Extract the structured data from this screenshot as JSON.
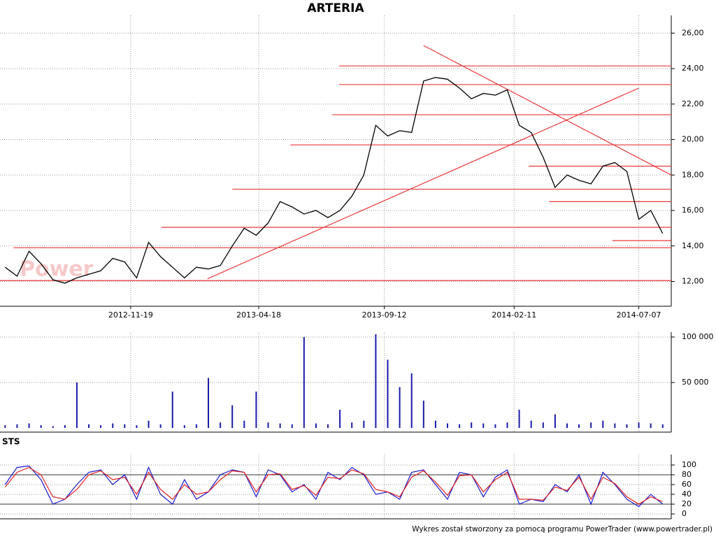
{
  "chart_data": [
    {
      "type": "line",
      "title": "ARTERIA",
      "watermark": "Power",
      "color": "#000000",
      "line_color": "#e8393a",
      "grid": true,
      "x": [
        "2012-06-25",
        "2012-07-09",
        "2012-07-23",
        "2012-08-06",
        "2012-08-20",
        "2012-09-03",
        "2012-09-17",
        "2012-10-01",
        "2012-10-15",
        "2012-10-29",
        "2012-11-12",
        "2012-11-26",
        "2012-12-10",
        "2012-12-24",
        "2013-01-07",
        "2013-01-21",
        "2013-02-04",
        "2013-02-18",
        "2013-03-04",
        "2013-03-18",
        "2013-04-01",
        "2013-04-15",
        "2013-04-29",
        "2013-05-13",
        "2013-05-27",
        "2013-06-10",
        "2013-06-24",
        "2013-07-08",
        "2013-07-22",
        "2013-08-05",
        "2013-08-19",
        "2013-09-02",
        "2013-09-16",
        "2013-09-30",
        "2013-10-14",
        "2013-10-28",
        "2013-11-11",
        "2013-11-25",
        "2013-12-09",
        "2013-12-23",
        "2014-01-06",
        "2014-01-20",
        "2014-02-03",
        "2014-02-17",
        "2014-03-03",
        "2014-03-17",
        "2014-03-31",
        "2014-04-14",
        "2014-04-28",
        "2014-05-12",
        "2014-05-26",
        "2014-06-09",
        "2014-06-23",
        "2014-07-07",
        "2014-07-21",
        "2014-08-04"
      ],
      "values": [
        12.8,
        12.3,
        13.7,
        13.0,
        12.1,
        11.9,
        12.2,
        12.4,
        12.6,
        13.3,
        13.1,
        12.2,
        14.2,
        13.4,
        12.8,
        12.2,
        12.8,
        12.7,
        12.9,
        14.0,
        15.0,
        14.6,
        15.3,
        16.5,
        16.2,
        15.8,
        16.0,
        15.6,
        16.0,
        16.8,
        18.0,
        20.8,
        20.2,
        20.5,
        20.4,
        23.3,
        23.5,
        23.4,
        22.9,
        22.3,
        22.6,
        22.5,
        22.8,
        20.8,
        20.4,
        19.0,
        17.3,
        18.0,
        17.7,
        17.5,
        18.5,
        18.7,
        18.2,
        15.5,
        16.0,
        14.7
      ],
      "xlim": [
        "2012-06-19",
        "2014-08-14"
      ],
      "xticks": [
        "2012-11-19",
        "2013-04-18",
        "2013-09-12",
        "2014-02-11",
        "2014-07-07"
      ],
      "ylim": [
        10.6,
        27.0
      ],
      "yticks": [
        {
          "value": 12,
          "label": "12,00"
        },
        {
          "value": 14,
          "label": "14,00"
        },
        {
          "value": 16,
          "label": "16,00"
        },
        {
          "value": 18,
          "label": "18,00"
        },
        {
          "value": 20,
          "label": "20,00"
        },
        {
          "value": 22,
          "label": "22,00"
        },
        {
          "value": 24,
          "label": "24,00"
        },
        {
          "value": 26,
          "label": "26,00"
        }
      ],
      "lines": [
        {
          "x": [
            "2013-07-21",
            "2014-08-14"
          ],
          "y": [
            24.15,
            24.15
          ]
        },
        {
          "x": [
            "2013-07-21",
            "2014-08-14"
          ],
          "y": [
            23.1,
            23.1
          ]
        },
        {
          "x": [
            "2013-07-13",
            "2014-08-14"
          ],
          "y": [
            21.4,
            21.4
          ]
        },
        {
          "x": [
            "2013-05-25",
            "2014-08-14"
          ],
          "y": [
            19.7,
            19.7
          ]
        },
        {
          "x": [
            "2014-02-28",
            "2014-08-14"
          ],
          "y": [
            18.5,
            18.5
          ]
        },
        {
          "x": [
            "2013-03-18",
            "2014-08-14"
          ],
          "y": [
            17.2,
            17.2
          ]
        },
        {
          "x": [
            "2014-03-24",
            "2014-08-14"
          ],
          "y": [
            16.5,
            16.5
          ]
        },
        {
          "x": [
            "2012-12-25",
            "2014-08-14"
          ],
          "y": [
            15.05,
            15.05
          ]
        },
        {
          "x": [
            "2014-06-06",
            "2014-08-14"
          ],
          "y": [
            14.3,
            14.3
          ]
        },
        {
          "x": [
            "2012-07-05",
            "2014-08-14"
          ],
          "y": [
            13.9,
            13.9
          ]
        },
        {
          "x": [
            "2012-06-19",
            "2014-08-14"
          ],
          "y": [
            12.05,
            12.05
          ]
        },
        {
          "x": [
            "2013-02-17",
            "2014-07-07"
          ],
          "y": [
            12.15,
            22.9
          ]
        },
        {
          "x": [
            "2013-10-28",
            "2014-08-14"
          ],
          "y": [
            25.3,
            18.0
          ]
        }
      ]
    },
    {
      "type": "bar",
      "color": "#1a1aa8",
      "x": [
        "2012-06-25",
        "2012-07-09",
        "2012-07-23",
        "2012-08-06",
        "2012-08-20",
        "2012-09-03",
        "2012-09-17",
        "2012-10-01",
        "2012-10-15",
        "2012-10-29",
        "2012-11-12",
        "2012-11-26",
        "2012-12-10",
        "2012-12-24",
        "2013-01-07",
        "2013-01-21",
        "2013-02-04",
        "2013-02-18",
        "2013-03-04",
        "2013-03-18",
        "2013-04-01",
        "2013-04-15",
        "2013-04-29",
        "2013-05-13",
        "2013-05-27",
        "2013-06-10",
        "2013-06-24",
        "2013-07-08",
        "2013-07-22",
        "2013-08-05",
        "2013-08-19",
        "2013-09-02",
        "2013-09-16",
        "2013-09-30",
        "2013-10-14",
        "2013-10-28",
        "2013-11-11",
        "2013-11-25",
        "2013-12-09",
        "2013-12-23",
        "2014-01-06",
        "2014-01-20",
        "2014-02-03",
        "2014-02-17",
        "2014-03-03",
        "2014-03-17",
        "2014-03-31",
        "2014-04-14",
        "2014-04-28",
        "2014-05-12",
        "2014-05-26",
        "2014-06-09",
        "2014-06-23",
        "2014-07-07",
        "2014-07-21",
        "2014-08-04"
      ],
      "values": [
        3000,
        4000,
        5000,
        3000,
        2000,
        3000,
        50000,
        4000,
        3000,
        5000,
        4000,
        3000,
        8000,
        4000,
        40000,
        3000,
        4000,
        55000,
        6000,
        25000,
        8000,
        40000,
        6000,
        5000,
        4000,
        100000,
        5000,
        4000,
        20000,
        6000,
        8000,
        103000,
        75000,
        45000,
        60000,
        30000,
        8000,
        5000,
        4000,
        6000,
        5000,
        4000,
        6000,
        20000,
        8000,
        6000,
        15000,
        5000,
        4000,
        6000,
        8000,
        5000,
        4000,
        6000,
        5000,
        4000
      ],
      "ylim": [
        -4600,
        105400
      ],
      "yticks": [
        {
          "value": 50000,
          "label": "50 000"
        },
        {
          "value": 100000,
          "label": "100 000"
        }
      ]
    },
    {
      "type": "line",
      "title": "STS",
      "x": [
        "2012-06-25",
        "2012-07-09",
        "2012-07-23",
        "2012-08-06",
        "2012-08-20",
        "2012-09-03",
        "2012-09-17",
        "2012-10-01",
        "2012-10-15",
        "2012-10-29",
        "2012-11-12",
        "2012-11-26",
        "2012-12-10",
        "2012-12-24",
        "2013-01-07",
        "2013-01-21",
        "2013-02-04",
        "2013-02-18",
        "2013-03-04",
        "2013-03-18",
        "2013-04-01",
        "2013-04-15",
        "2013-04-29",
        "2013-05-13",
        "2013-05-27",
        "2013-06-10",
        "2013-06-24",
        "2013-07-08",
        "2013-07-22",
        "2013-08-05",
        "2013-08-19",
        "2013-09-02",
        "2013-09-16",
        "2013-09-30",
        "2013-10-14",
        "2013-10-28",
        "2013-11-11",
        "2013-11-25",
        "2013-12-09",
        "2013-12-23",
        "2014-01-06",
        "2014-01-20",
        "2014-02-03",
        "2014-02-17",
        "2014-03-03",
        "2014-03-17",
        "2014-03-31",
        "2014-04-14",
        "2014-04-28",
        "2014-05-12",
        "2014-05-26",
        "2014-06-09",
        "2014-06-23",
        "2014-07-07",
        "2014-07-21",
        "2014-08-04"
      ],
      "series": [
        {
          "color": "#1a1ad0",
          "values": [
            60,
            95,
            98,
            70,
            20,
            30,
            60,
            85,
            90,
            60,
            80,
            30,
            95,
            40,
            20,
            70,
            30,
            45,
            80,
            90,
            85,
            35,
            90,
            80,
            45,
            60,
            30,
            85,
            70,
            95,
            80,
            40,
            45,
            30,
            85,
            90,
            60,
            30,
            85,
            80,
            35,
            75,
            90,
            20,
            30,
            25,
            60,
            45,
            80,
            20,
            85,
            60,
            30,
            15,
            40,
            20
          ]
        },
        {
          "color": "#e02020",
          "values": [
            55,
            85,
            95,
            80,
            35,
            30,
            50,
            80,
            88,
            70,
            75,
            40,
            85,
            50,
            30,
            60,
            40,
            45,
            70,
            88,
            85,
            45,
            80,
            82,
            50,
            58,
            38,
            75,
            72,
            90,
            82,
            50,
            45,
            35,
            75,
            88,
            65,
            38,
            78,
            80,
            45,
            70,
            85,
            30,
            30,
            28,
            55,
            48,
            75,
            30,
            75,
            62,
            35,
            20,
            35,
            25
          ]
        }
      ],
      "levels": [
        20,
        80
      ],
      "ylim": [
        -10,
        121.4
      ],
      "yticks": [
        0,
        20,
        40,
        60,
        80,
        100
      ]
    }
  ],
  "footer": "Wykres został stworzony za pomocą programu PowerTrader (www.powertrader.pl)"
}
